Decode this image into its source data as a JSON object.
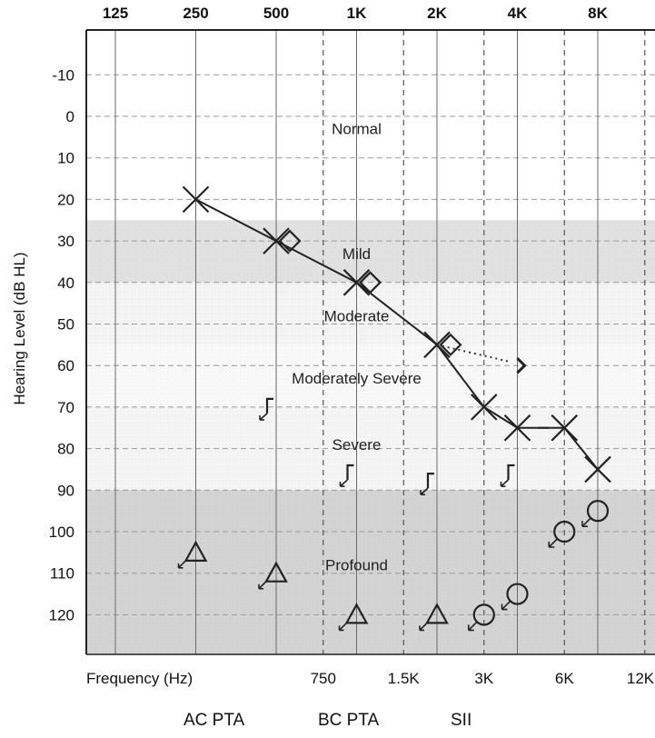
{
  "chart_data": {
    "type": "scatter",
    "title": "",
    "ylabel": "Hearing Level (dB HL)",
    "xlabel": "Frequency (Hz)",
    "x_scale": "log2-octave",
    "y_inverted": true,
    "ylim": [
      -20,
      130
    ],
    "grid": true,
    "top_ticks": [
      {
        "label": "125",
        "hz": 125
      },
      {
        "label": "250",
        "hz": 250
      },
      {
        "label": "500",
        "hz": 500
      },
      {
        "label": "1K",
        "hz": 1000
      },
      {
        "label": "2K",
        "hz": 2000
      },
      {
        "label": "4K",
        "hz": 4000
      },
      {
        "label": "8K",
        "hz": 8000
      }
    ],
    "bottom_ticks": [
      {
        "label": "750",
        "hz": 750
      },
      {
        "label": "1.5K",
        "hz": 1500
      },
      {
        "label": "3K",
        "hz": 3000
      },
      {
        "label": "6K",
        "hz": 6000
      },
      {
        "label": "12K",
        "hz": 12000
      }
    ],
    "y_ticks": [
      -10,
      0,
      10,
      20,
      30,
      40,
      50,
      60,
      70,
      80,
      90,
      100,
      110,
      120
    ],
    "bands": [
      {
        "label": "Normal",
        "from": -20,
        "to": 25,
        "color": "#ffffff",
        "label_hz": 1000,
        "label_db": 3
      },
      {
        "label": "Mild",
        "from": 25,
        "to": 40,
        "color": "#e3e3e3",
        "label_hz": 1000,
        "label_db": 33
      },
      {
        "label": "Moderate",
        "from": 40,
        "to": 55,
        "color": "#f6f6f6",
        "label_hz": 1000,
        "label_db": 48
      },
      {
        "label": "Moderately Severe",
        "from": 55,
        "to": 70,
        "color": "#fbfbfb",
        "label_hz": 1000,
        "label_db": 63
      },
      {
        "label": "Severe",
        "from": 70,
        "to": 90,
        "color": "#f7f7f7",
        "label_hz": 1000,
        "label_db": 79
      },
      {
        "label": "Profound",
        "from": 90,
        "to": 130,
        "color": "#d5d5d5",
        "label_hz": 1000,
        "label_db": 108
      }
    ],
    "series": [
      {
        "marker": "x",
        "connected": true,
        "points": [
          {
            "hz": 250,
            "db": 20
          },
          {
            "hz": 500,
            "db": 30
          },
          {
            "hz": 1000,
            "db": 40
          },
          {
            "hz": 2000,
            "db": 55
          },
          {
            "hz": 3000,
            "db": 70
          },
          {
            "hz": 4000,
            "db": 75
          },
          {
            "hz": 6000,
            "db": 75
          },
          {
            "hz": 8000,
            "db": 85
          }
        ]
      },
      {
        "marker": "diamond",
        "connected": false,
        "points": [
          {
            "hz": 500,
            "db": 30
          },
          {
            "hz": 1000,
            "db": 40
          },
          {
            "hz": 2000,
            "db": 55
          }
        ]
      },
      {
        "marker": "right-bracket",
        "points": [
          {
            "hz": 4000,
            "db": 60
          }
        ]
      },
      {
        "marker": "bracket-arrow",
        "points": [
          {
            "hz": 500,
            "db": 70
          },
          {
            "hz": 1000,
            "db": 86
          },
          {
            "hz": 2000,
            "db": 88
          },
          {
            "hz": 4000,
            "db": 86
          }
        ]
      },
      {
        "marker": "triangle-arrow",
        "points": [
          {
            "hz": 250,
            "db": 105
          },
          {
            "hz": 500,
            "db": 110
          },
          {
            "hz": 1000,
            "db": 120
          },
          {
            "hz": 2000,
            "db": 120
          }
        ]
      },
      {
        "marker": "circle-arrow",
        "points": [
          {
            "hz": 3000,
            "db": 120
          },
          {
            "hz": 4000,
            "db": 115
          },
          {
            "hz": 6000,
            "db": 100
          },
          {
            "hz": 8000,
            "db": 95
          }
        ]
      }
    ],
    "dotted_segments": [
      {
        "from": {
          "hz": 2000,
          "db": 55
        },
        "to": {
          "hz": 3700,
          "db": 59
        }
      }
    ],
    "dashes": [
      {
        "hz": 5000,
        "db": 75
      }
    ]
  },
  "footer": {
    "ac_pta": "AC PTA",
    "bc_pta": "BC PTA",
    "sii": "SII"
  }
}
